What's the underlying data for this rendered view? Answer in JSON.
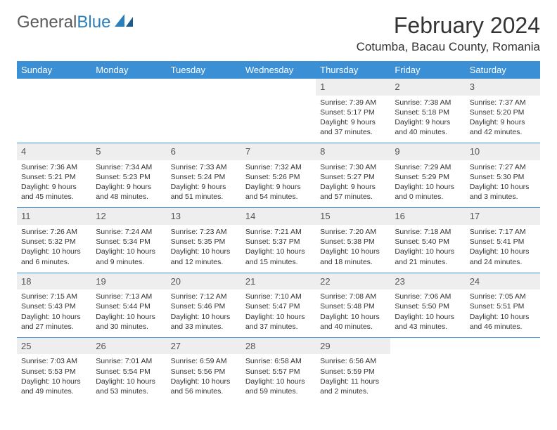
{
  "logo": {
    "word1": "General",
    "word2": "Blue"
  },
  "title": "February 2024",
  "location": "Cotumba, Bacau County, Romania",
  "colors": {
    "header_bg": "#3b8fd4",
    "header_text": "#ffffff",
    "rule": "#3b8fd4",
    "daybar_bg": "#eeeeee",
    "body_text": "#333333",
    "logo_gray": "#5a5a5a",
    "logo_blue": "#2a7fbf"
  },
  "day_headers": [
    "Sunday",
    "Monday",
    "Tuesday",
    "Wednesday",
    "Thursday",
    "Friday",
    "Saturday"
  ],
  "weeks": [
    [
      {
        "empty": true
      },
      {
        "empty": true
      },
      {
        "empty": true
      },
      {
        "empty": true
      },
      {
        "day": "1",
        "sunrise": "7:39 AM",
        "sunset": "5:17 PM",
        "daylight": "9 hours and 37 minutes."
      },
      {
        "day": "2",
        "sunrise": "7:38 AM",
        "sunset": "5:18 PM",
        "daylight": "9 hours and 40 minutes."
      },
      {
        "day": "3",
        "sunrise": "7:37 AM",
        "sunset": "5:20 PM",
        "daylight": "9 hours and 42 minutes."
      }
    ],
    [
      {
        "day": "4",
        "sunrise": "7:36 AM",
        "sunset": "5:21 PM",
        "daylight": "9 hours and 45 minutes."
      },
      {
        "day": "5",
        "sunrise": "7:34 AM",
        "sunset": "5:23 PM",
        "daylight": "9 hours and 48 minutes."
      },
      {
        "day": "6",
        "sunrise": "7:33 AM",
        "sunset": "5:24 PM",
        "daylight": "9 hours and 51 minutes."
      },
      {
        "day": "7",
        "sunrise": "7:32 AM",
        "sunset": "5:26 PM",
        "daylight": "9 hours and 54 minutes."
      },
      {
        "day": "8",
        "sunrise": "7:30 AM",
        "sunset": "5:27 PM",
        "daylight": "9 hours and 57 minutes."
      },
      {
        "day": "9",
        "sunrise": "7:29 AM",
        "sunset": "5:29 PM",
        "daylight": "10 hours and 0 minutes."
      },
      {
        "day": "10",
        "sunrise": "7:27 AM",
        "sunset": "5:30 PM",
        "daylight": "10 hours and 3 minutes."
      }
    ],
    [
      {
        "day": "11",
        "sunrise": "7:26 AM",
        "sunset": "5:32 PM",
        "daylight": "10 hours and 6 minutes."
      },
      {
        "day": "12",
        "sunrise": "7:24 AM",
        "sunset": "5:34 PM",
        "daylight": "10 hours and 9 minutes."
      },
      {
        "day": "13",
        "sunrise": "7:23 AM",
        "sunset": "5:35 PM",
        "daylight": "10 hours and 12 minutes."
      },
      {
        "day": "14",
        "sunrise": "7:21 AM",
        "sunset": "5:37 PM",
        "daylight": "10 hours and 15 minutes."
      },
      {
        "day": "15",
        "sunrise": "7:20 AM",
        "sunset": "5:38 PM",
        "daylight": "10 hours and 18 minutes."
      },
      {
        "day": "16",
        "sunrise": "7:18 AM",
        "sunset": "5:40 PM",
        "daylight": "10 hours and 21 minutes."
      },
      {
        "day": "17",
        "sunrise": "7:17 AM",
        "sunset": "5:41 PM",
        "daylight": "10 hours and 24 minutes."
      }
    ],
    [
      {
        "day": "18",
        "sunrise": "7:15 AM",
        "sunset": "5:43 PM",
        "daylight": "10 hours and 27 minutes."
      },
      {
        "day": "19",
        "sunrise": "7:13 AM",
        "sunset": "5:44 PM",
        "daylight": "10 hours and 30 minutes."
      },
      {
        "day": "20",
        "sunrise": "7:12 AM",
        "sunset": "5:46 PM",
        "daylight": "10 hours and 33 minutes."
      },
      {
        "day": "21",
        "sunrise": "7:10 AM",
        "sunset": "5:47 PM",
        "daylight": "10 hours and 37 minutes."
      },
      {
        "day": "22",
        "sunrise": "7:08 AM",
        "sunset": "5:48 PM",
        "daylight": "10 hours and 40 minutes."
      },
      {
        "day": "23",
        "sunrise": "7:06 AM",
        "sunset": "5:50 PM",
        "daylight": "10 hours and 43 minutes."
      },
      {
        "day": "24",
        "sunrise": "7:05 AM",
        "sunset": "5:51 PM",
        "daylight": "10 hours and 46 minutes."
      }
    ],
    [
      {
        "day": "25",
        "sunrise": "7:03 AM",
        "sunset": "5:53 PM",
        "daylight": "10 hours and 49 minutes."
      },
      {
        "day": "26",
        "sunrise": "7:01 AM",
        "sunset": "5:54 PM",
        "daylight": "10 hours and 53 minutes."
      },
      {
        "day": "27",
        "sunrise": "6:59 AM",
        "sunset": "5:56 PM",
        "daylight": "10 hours and 56 minutes."
      },
      {
        "day": "28",
        "sunrise": "6:58 AM",
        "sunset": "5:57 PM",
        "daylight": "10 hours and 59 minutes."
      },
      {
        "day": "29",
        "sunrise": "6:56 AM",
        "sunset": "5:59 PM",
        "daylight": "11 hours and 2 minutes."
      },
      {
        "empty": true
      },
      {
        "empty": true
      }
    ]
  ],
  "labels": {
    "sunrise_prefix": "Sunrise: ",
    "sunset_prefix": "Sunset: ",
    "daylight_prefix": "Daylight: "
  }
}
